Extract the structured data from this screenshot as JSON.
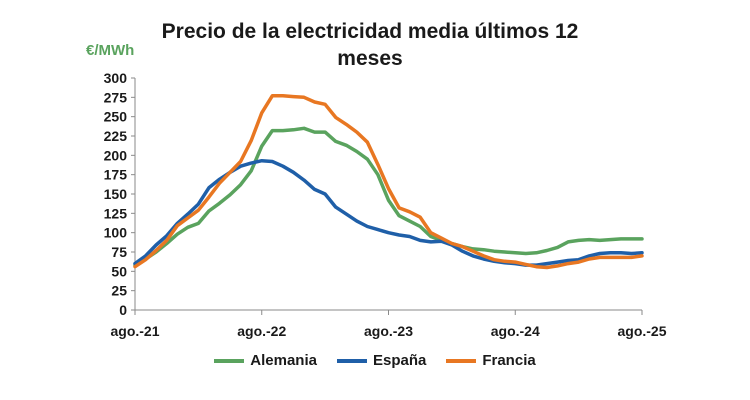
{
  "chart_data": {
    "type": "line",
    "title": "Precio de la electricidad media últimos 12 meses",
    "ylabel": "€/MWh",
    "xlabel": "",
    "ylim": [
      0,
      300
    ],
    "y_ticks": [
      "0",
      "25",
      "50",
      "75",
      "100",
      "125",
      "150",
      "175",
      "200",
      "225",
      "250",
      "275",
      "300"
    ],
    "x_range": [
      0,
      48
    ],
    "x_ticks": [
      {
        "pos": 0,
        "label": "ago.-21"
      },
      {
        "pos": 12,
        "label": "ago.-22"
      },
      {
        "pos": 24,
        "label": "ago.-23"
      },
      {
        "pos": 36,
        "label": "ago.-24"
      },
      {
        "pos": 48,
        "label": "ago.-25"
      }
    ],
    "grid": false,
    "legend_position": "bottom",
    "series": [
      {
        "name": "Alemania",
        "color": "#5aa35e",
        "values": [
          58,
          66,
          75,
          86,
          98,
          107,
          112,
          128,
          138,
          149,
          162,
          180,
          212,
          232,
          232,
          233,
          235,
          230,
          230,
          218,
          213,
          205,
          195,
          175,
          142,
          122,
          115,
          108,
          95,
          90,
          86,
          82,
          79,
          78,
          76,
          75,
          74,
          73,
          74,
          77,
          81,
          88,
          90,
          91,
          90,
          91,
          92,
          92,
          92
        ]
      },
      {
        "name": "España",
        "color": "#1f5fa8",
        "values": [
          60,
          70,
          84,
          96,
          112,
          124,
          137,
          158,
          169,
          178,
          186,
          190,
          193,
          192,
          186,
          178,
          168,
          156,
          150,
          133,
          124,
          115,
          108,
          104,
          100,
          97,
          95,
          90,
          88,
          89,
          84,
          76,
          70,
          66,
          63,
          61,
          60,
          58,
          58,
          60,
          62,
          64,
          65,
          70,
          73,
          74,
          74,
          73,
          74
        ]
      },
      {
        "name": "Francia",
        "color": "#e87722",
        "values": [
          56,
          65,
          77,
          90,
          109,
          119,
          129,
          146,
          164,
          178,
          192,
          219,
          255,
          277,
          277,
          276,
          275,
          269,
          266,
          249,
          240,
          230,
          217,
          188,
          157,
          132,
          127,
          120,
          100,
          93,
          86,
          82,
          76,
          70,
          65,
          63,
          62,
          59,
          56,
          55,
          57,
          60,
          62,
          66,
          68,
          68,
          68,
          68,
          70
        ]
      }
    ]
  }
}
